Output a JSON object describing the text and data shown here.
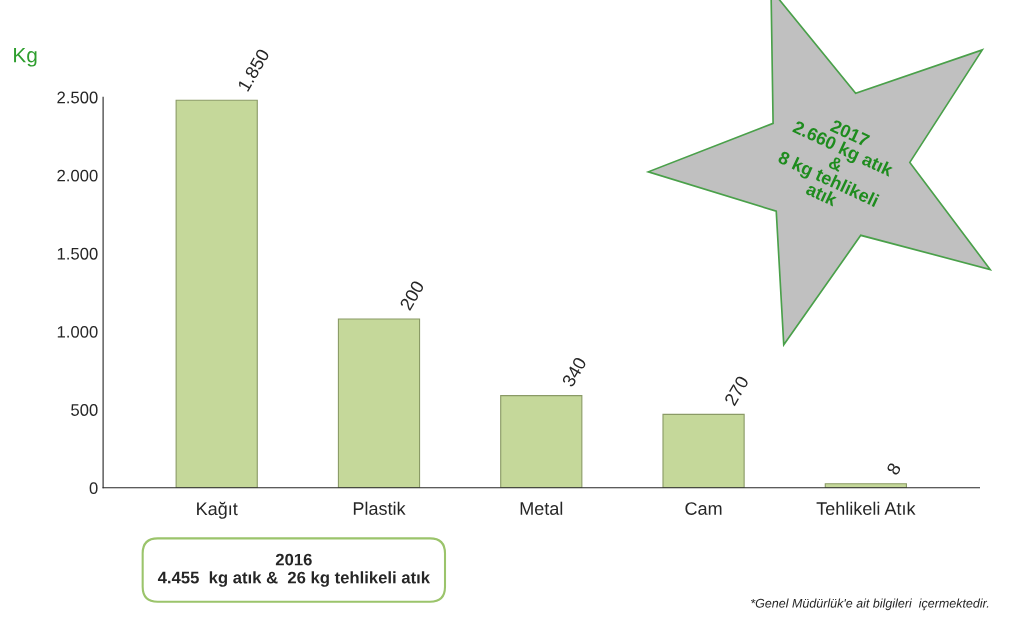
{
  "chart_data": {
    "type": "bar",
    "ylabel": "Kg",
    "categories": [
      "Kağıt",
      "Plastik",
      "Metal",
      "Cam",
      "Tehlikeli Atık"
    ],
    "values": [
      2480,
      1080,
      590,
      470,
      26
    ],
    "color": "#c5d89a",
    "ylim": [
      0,
      2500
    ],
    "yticks": [
      0,
      500,
      {
        "value": 1000,
        "label": "1.000"
      },
      {
        "value": 1500,
        "label": "1.500"
      },
      {
        "value": 2000,
        "label": "2.000"
      },
      {
        "value": 2500,
        "label": "2.500"
      }
    ],
    "grid": false,
    "legend": false,
    "annotations": [
      {
        "text": "1.850",
        "x": "Kağıt",
        "y": 2480
      },
      {
        "text": "200",
        "x": "Plastik",
        "y": 1080
      },
      {
        "text": "340",
        "x": "Metal",
        "y": 590
      },
      {
        "text": "270",
        "x": "Cam",
        "y": 470
      },
      {
        "text": "8",
        "x": "Tehlikeli Atık",
        "y": 26
      },
      "2017\n2.660 kg atık\n&\n8 kg tehlikeli\natık",
      "2016\n4.455  kg atık &  26 kg tehlikeli atık",
      "*Genel Müdürlük'e ait bilgileri  içermektedir."
    ]
  }
}
